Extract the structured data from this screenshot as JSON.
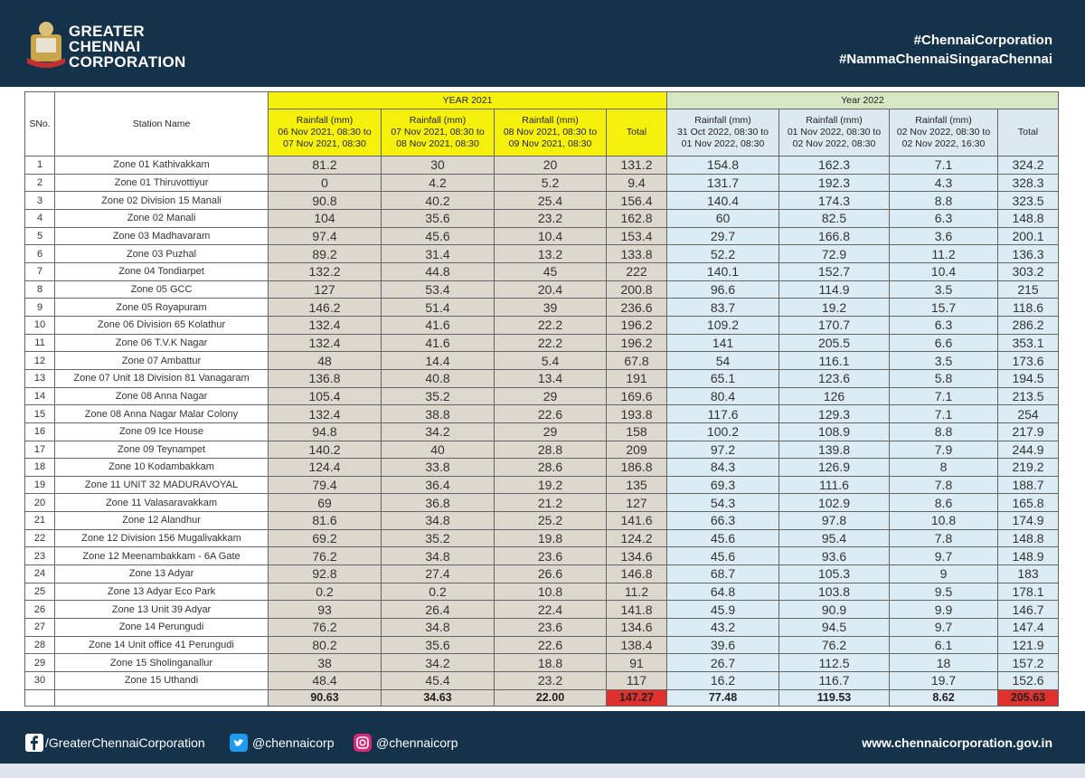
{
  "header": {
    "title": [
      "GREATER",
      "CHENNAI",
      "CORPORATION"
    ],
    "hashtags": [
      "#ChennaiCorporation",
      "#NammaChennaiSingaraChennai"
    ]
  },
  "table": {
    "headers": [
      "SNo.",
      "Station Name"
    ],
    "group_headers": [
      "YEAR 2021",
      "Year 2022"
    ],
    "sub_headers": [
      "Rainfall (mm)\n06 Nov 2021, 08:30 to\n07 Nov 2021, 08:30",
      "Rainfall (mm)\n07 Nov 2021, 08:30 to\n08 Nov 2021, 08:30",
      "Rainfall (mm)\n08 Nov 2021, 08:30 to\n09 Nov 2021, 08:30",
      "Total",
      "Rainfall (mm)\n31 Oct 2022, 08:30 to\n01 Nov 2022, 08:30",
      "Rainfall (mm)\n01 Nov 2022, 08:30 to\n02 Nov 2022, 08:30",
      "Rainfall (mm)\n02 Nov 2022, 08:30 to\n02 Nov 2022, 16:30",
      "Total"
    ],
    "rows": [
      [
        "1",
        "Zone 01 Kathivakkam",
        "81.2",
        "30",
        "20",
        "131.2",
        "154.8",
        "162.3",
        "7.1",
        "324.2"
      ],
      [
        "2",
        "Zone 01 Thiruvottiyur",
        "0",
        "4.2",
        "5.2",
        "9.4",
        "131.7",
        "192.3",
        "4.3",
        "328.3"
      ],
      [
        "3",
        "Zone 02 Division 15 Manali",
        "90.8",
        "40.2",
        "25.4",
        "156.4",
        "140.4",
        "174.3",
        "8.8",
        "323.5"
      ],
      [
        "4",
        "Zone 02 Manali",
        "104",
        "35.6",
        "23.2",
        "162.8",
        "60",
        "82.5",
        "6.3",
        "148.8"
      ],
      [
        "5",
        "Zone 03 Madhavaram",
        "97.4",
        "45.6",
        "10.4",
        "153.4",
        "29.7",
        "166.8",
        "3.6",
        "200.1"
      ],
      [
        "6",
        "Zone 03 Puzhal",
        "89.2",
        "31.4",
        "13.2",
        "133.8",
        "52.2",
        "72.9",
        "11.2",
        "136.3"
      ],
      [
        "7",
        "Zone 04 Tondiarpet",
        "132.2",
        "44.8",
        "45",
        "222",
        "140.1",
        "152.7",
        "10.4",
        "303.2"
      ],
      [
        "8",
        "Zone 05 GCC",
        "127",
        "53.4",
        "20.4",
        "200.8",
        "96.6",
        "114.9",
        "3.5",
        "215"
      ],
      [
        "9",
        "Zone 05 Royapuram",
        "146.2",
        "51.4",
        "39",
        "236.6",
        "83.7",
        "19.2",
        "15.7",
        "118.6"
      ],
      [
        "10",
        "Zone 06 Division 65 Kolathur",
        "132.4",
        "41.6",
        "22.2",
        "196.2",
        "109.2",
        "170.7",
        "6.3",
        "286.2"
      ],
      [
        "11",
        "Zone 06 T.V.K Nagar",
        "132.4",
        "41.6",
        "22.2",
        "196.2",
        "141",
        "205.5",
        "6.6",
        "353.1"
      ],
      [
        "12",
        "Zone 07 Ambattur",
        "48",
        "14.4",
        "5.4",
        "67.8",
        "54",
        "116.1",
        "3.5",
        "173.6"
      ],
      [
        "13",
        "Zone 07 Unit 18 Division 81 Vanagaram",
        "136.8",
        "40.8",
        "13.4",
        "191",
        "65.1",
        "123.6",
        "5.8",
        "194.5"
      ],
      [
        "14",
        "Zone 08 Anna Nagar",
        "105.4",
        "35.2",
        "29",
        "169.6",
        "80.4",
        "126",
        "7.1",
        "213.5"
      ],
      [
        "15",
        "Zone 08 Anna Nagar Malar Colony",
        "132.4",
        "38.8",
        "22.6",
        "193.8",
        "117.6",
        "129.3",
        "7.1",
        "254"
      ],
      [
        "16",
        "Zone 09 Ice House",
        "94.8",
        "34.2",
        "29",
        "158",
        "100.2",
        "108.9",
        "8.8",
        "217.9"
      ],
      [
        "17",
        "Zone 09 Teynampet",
        "140.2",
        "40",
        "28.8",
        "209",
        "97.2",
        "139.8",
        "7.9",
        "244.9"
      ],
      [
        "18",
        "Zone 10 Kodambakkam",
        "124.4",
        "33.8",
        "28.6",
        "186.8",
        "84.3",
        "126.9",
        "8",
        "219.2"
      ],
      [
        "19",
        "Zone 11 UNIT 32 MADURAVOYAL",
        "79.4",
        "36.4",
        "19.2",
        "135",
        "69.3",
        "111.6",
        "7.8",
        "188.7"
      ],
      [
        "20",
        "Zone 11 Valasaravakkam",
        "69",
        "36.8",
        "21.2",
        "127",
        "54.3",
        "102.9",
        "8.6",
        "165.8"
      ],
      [
        "21",
        "Zone 12 Alandhur",
        "81.6",
        "34.8",
        "25.2",
        "141.6",
        "66.3",
        "97.8",
        "10.8",
        "174.9"
      ],
      [
        "22",
        "Zone 12 Division 156 Mugalivakkam",
        "69.2",
        "35.2",
        "19.8",
        "124.2",
        "45.6",
        "95.4",
        "7.8",
        "148.8"
      ],
      [
        "23",
        "Zone 12 Meenambakkam - 6A Gate",
        "76.2",
        "34.8",
        "23.6",
        "134.6",
        "45.6",
        "93.6",
        "9.7",
        "148.9"
      ],
      [
        "24",
        "Zone 13 Adyar",
        "92.8",
        "27.4",
        "26.6",
        "146.8",
        "68.7",
        "105.3",
        "9",
        "183"
      ],
      [
        "25",
        "Zone 13 Adyar Eco Park",
        "0.2",
        "0.2",
        "10.8",
        "11.2",
        "64.8",
        "103.8",
        "9.5",
        "178.1"
      ],
      [
        "26",
        "Zone 13 Unit 39 Adyar",
        "93",
        "26.4",
        "22.4",
        "141.8",
        "45.9",
        "90.9",
        "9.9",
        "146.7"
      ],
      [
        "27",
        "Zone 14 Perungudi",
        "76.2",
        "34.8",
        "23.6",
        "134.6",
        "43.2",
        "94.5",
        "9.7",
        "147.4"
      ],
      [
        "28",
        "Zone 14 Unit office 41 Perungudi",
        "80.2",
        "35.6",
        "22.6",
        "138.4",
        "39.6",
        "76.2",
        "6.1",
        "121.9"
      ],
      [
        "29",
        "Zone 15 Sholinganallur",
        "38",
        "34.2",
        "18.8",
        "91",
        "26.7",
        "112.5",
        "18",
        "157.2"
      ],
      [
        "30",
        "Zone 15 Uthandi",
        "48.4",
        "45.4",
        "23.2",
        "117",
        "16.2",
        "116.7",
        "19.7",
        "152.6"
      ]
    ],
    "totals": [
      "90.63",
      "34.63",
      "22.00",
      "147.27",
      "77.48",
      "119.53",
      "8.62",
      "205.63"
    ]
  },
  "footer": {
    "facebook": "/GreaterChennaiCorporation",
    "twitter": "@chennaicorp",
    "instagram": "@chennaicorp",
    "website": "www.chennaicorporation.gov.in"
  }
}
